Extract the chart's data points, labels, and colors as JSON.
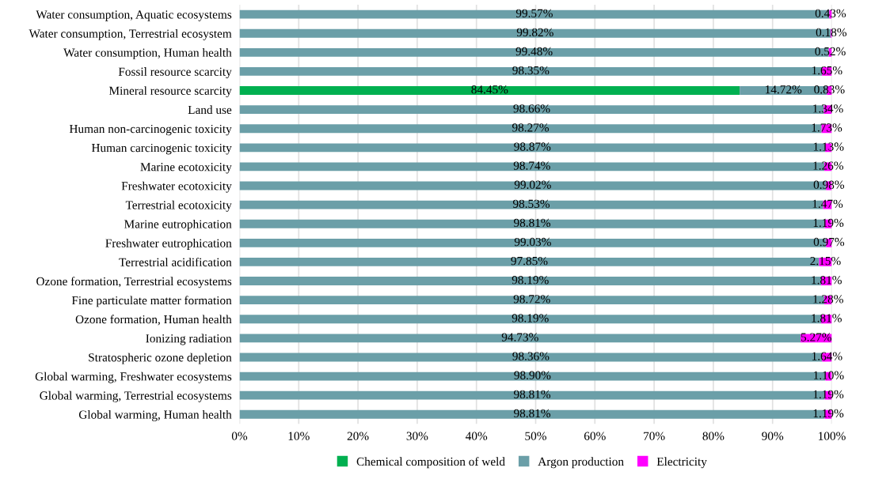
{
  "chart_data": {
    "type": "bar",
    "orientation": "horizontal",
    "stacked": true,
    "categories": [
      "Water consumption, Aquatic ecosystems",
      "Water consumption, Terrestrial ecosystem",
      "Water consumption, Human health",
      "Fossil resource scarcity",
      "Mineral resource scarcity",
      "Land use",
      "Human non-carcinogenic toxicity",
      "Human carcinogenic toxicity",
      "Marine ecotoxicity",
      "Freshwater ecotoxicity",
      "Terrestrial ecotoxicity",
      "Marine eutrophication",
      "Freshwater eutrophication",
      "Terrestrial acidification",
      "Ozone formation, Terrestrial ecosystems",
      "Fine particulate matter formation",
      "Ozone formation, Human health",
      "Ionizing radiation",
      "Stratospheric ozone depletion",
      "Global warming, Freshwater ecosystems",
      "Global warming, Terrestrial ecosystems",
      "Global warming, Human health"
    ],
    "series": [
      {
        "name": "Chemical composition of weld",
        "color": "#00b050",
        "values": [
          0,
          0,
          0,
          0,
          84.45,
          0,
          0,
          0,
          0,
          0,
          0,
          0,
          0,
          0,
          0,
          0,
          0,
          0,
          0,
          0,
          0,
          0
        ],
        "value_labels": [
          null,
          null,
          null,
          null,
          "84.45%",
          null,
          null,
          null,
          null,
          null,
          null,
          null,
          null,
          null,
          null,
          null,
          null,
          null,
          null,
          null,
          null,
          null
        ]
      },
      {
        "name": "Argon production",
        "color": "#6b9fa8",
        "values": [
          99.57,
          99.82,
          99.48,
          98.35,
          14.72,
          98.66,
          98.27,
          98.87,
          98.74,
          99.02,
          98.53,
          98.81,
          99.03,
          97.85,
          98.19,
          98.72,
          98.19,
          94.73,
          98.36,
          98.9,
          98.81,
          98.81
        ],
        "value_labels": [
          "99.57%",
          "99.82%",
          "99.48%",
          "98.35%",
          "14.72%",
          "98.66%",
          "98.27%",
          "98.87%",
          "98.74%",
          "99.02%",
          "98.53%",
          "98.81%",
          "99.03%",
          "97.85%",
          "98.19%",
          "98.72%",
          "98.19%",
          "94.73%",
          "98.36%",
          "98.90%",
          "98.81%",
          "98.81%"
        ]
      },
      {
        "name": "Electricity",
        "color": "#ff00ff",
        "values": [
          0.43,
          0.18,
          0.52,
          1.65,
          0.83,
          1.34,
          1.73,
          1.13,
          1.26,
          0.98,
          1.47,
          1.19,
          0.97,
          2.15,
          1.81,
          1.28,
          1.81,
          5.27,
          1.64,
          1.1,
          1.19,
          1.19
        ],
        "value_labels": [
          "0.43%",
          "0.18%",
          "0.52%",
          "1.65%",
          "0.83%",
          "1.34%",
          "1.73%",
          "1.13%",
          "1.26%",
          "0.98%",
          "1.47%",
          "1.19%",
          "0.97%",
          "2.15%",
          "1.81%",
          "1.28%",
          "1.81%",
          "5.27%",
          "1.64%",
          "1.10%",
          "1.19%",
          "1.19%"
        ]
      }
    ],
    "xlim": [
      0,
      100
    ],
    "xticks": [
      {
        "value": 0,
        "label": "0%"
      },
      {
        "value": 10,
        "label": "10%"
      },
      {
        "value": 20,
        "label": "20%"
      },
      {
        "value": 30,
        "label": "30%"
      },
      {
        "value": 40,
        "label": "40%"
      },
      {
        "value": 50,
        "label": "50%"
      },
      {
        "value": 60,
        "label": "60%"
      },
      {
        "value": 70,
        "label": "70%"
      },
      {
        "value": 80,
        "label": "80%"
      },
      {
        "value": 90,
        "label": "90%"
      },
      {
        "value": 100,
        "label": "100%"
      }
    ],
    "grid": "x",
    "legend": "bottom"
  }
}
